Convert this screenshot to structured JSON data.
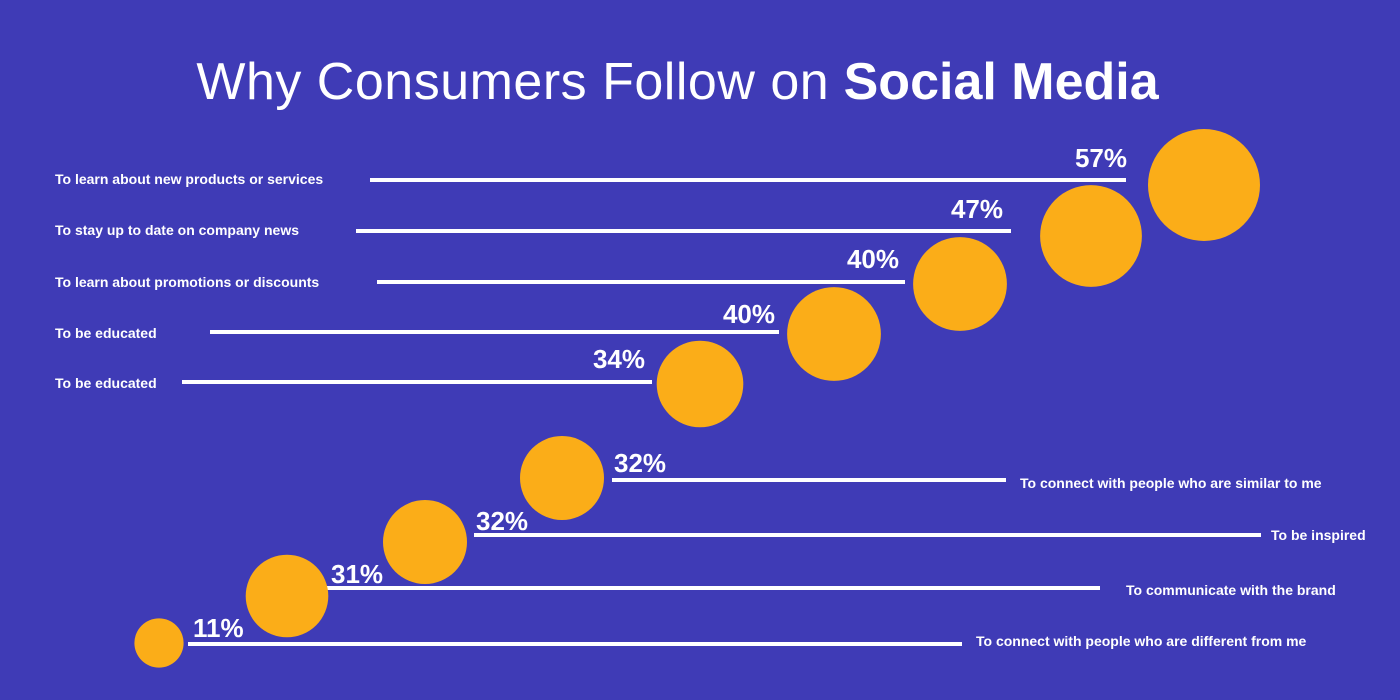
{
  "title": {
    "light": "Why Consumers Follow on",
    "bold": "Social Media"
  },
  "colors": {
    "background": "#3f3bb6",
    "dot": "#fbad18",
    "line": "#ffffff",
    "text": "#ffffff"
  },
  "chart_data": {
    "type": "bar",
    "title": "Why Consumers Follow on Social Media",
    "unit": "%",
    "items": [
      {
        "label": "To learn about new products or services",
        "value": 57,
        "value_label": "57%"
      },
      {
        "label": "To stay up to date on company news",
        "value": 47,
        "value_label": "47%"
      },
      {
        "label": "To learn about promotions or discounts",
        "value": 40,
        "value_label": "40%"
      },
      {
        "label": "To be educated",
        "value": 40,
        "value_label": "40%"
      },
      {
        "label": "To be educated",
        "value": 34,
        "value_label": "34%"
      },
      {
        "label": "To connect with people who are similar to me",
        "value": 32,
        "value_label": "32%"
      },
      {
        "label": "To be inspired",
        "value": 32,
        "value_label": "32%"
      },
      {
        "label": "To communicate with the brand",
        "value": 31,
        "value_label": "31%"
      },
      {
        "label": "To connect with people who are different from me",
        "value": 11,
        "value_label": "11%"
      }
    ]
  }
}
